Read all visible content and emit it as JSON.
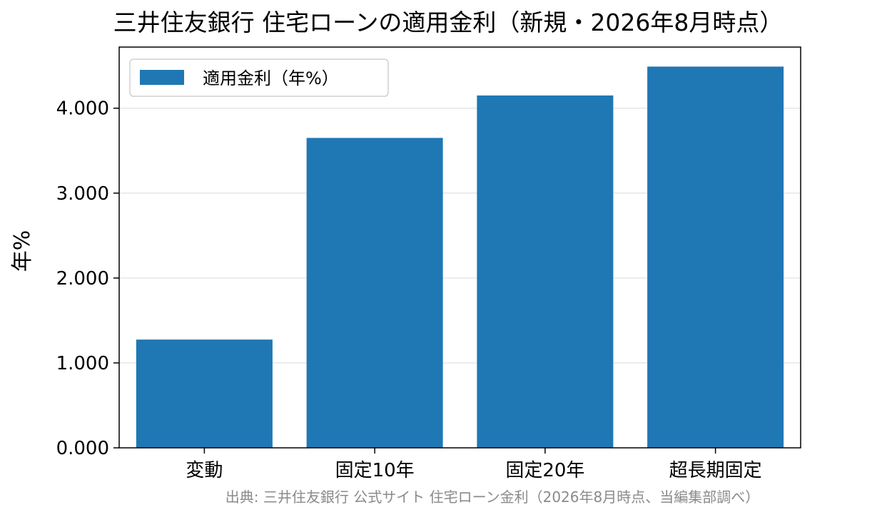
{
  "chart_data": {
    "type": "bar",
    "title": "三井住友銀行 住宅ローンの適用金利（新規・2026年8月時点）",
    "xlabel": "",
    "ylabel": "年%",
    "categories": [
      "変動",
      "固定10年",
      "固定20年",
      "超長期固定"
    ],
    "series": [
      {
        "name": "適用金利（年%）",
        "values": [
          1.275,
          3.65,
          4.15,
          4.49
        ]
      }
    ],
    "ylim": [
      0,
      4.72
    ],
    "yticks": [
      "0.000",
      "1.000",
      "2.000",
      "3.000",
      "4.000"
    ],
    "grid": "horizontal",
    "legend_position": "top-left",
    "colors": {
      "bar": "#1f77b4",
      "grid": "#e6e6e6",
      "source_text": "#8a8a8a"
    }
  },
  "source_note": "出典: 三井住友銀行 公式サイト 住宅ローン金利（2026年8月時点、当編集部調べ）"
}
